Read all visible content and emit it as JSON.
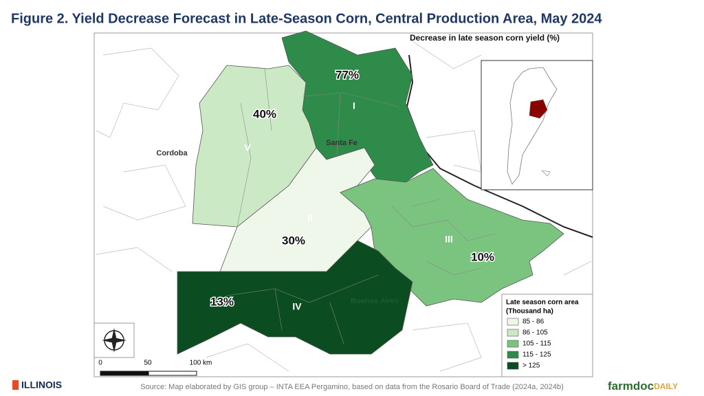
{
  "header": {
    "title": "Figure 2. Yield Decrease Forecast in Late-Season Corn, Central Production Area, May 2024"
  },
  "map": {
    "title": "Decrease in late season corn yield (%)",
    "regions": [
      {
        "id": "I",
        "percent": "77%"
      },
      {
        "id": "V",
        "percent": "40%"
      },
      {
        "id": "II",
        "percent": "30%"
      },
      {
        "id": "III",
        "percent": "10%"
      },
      {
        "id": "IV",
        "percent": "13%"
      }
    ],
    "places": [
      "Santa Fe",
      "Cordoba",
      "Buenos Aires"
    ]
  },
  "legend": {
    "title": [
      "Late season corn area",
      "(Thousand ha)"
    ],
    "items": [
      {
        "label": "85 - 86",
        "color": "#eef7ea"
      },
      {
        "label": "86 - 105",
        "color": "#cbe9c5"
      },
      {
        "label": "105 - 115",
        "color": "#7bc47f"
      },
      {
        "label": "115 - 125",
        "color": "#2e8b4a"
      },
      {
        "label": "> 125",
        "color": "#0b4d21"
      }
    ]
  },
  "scale_bar": [
    "0",
    "50",
    "100 km"
  ],
  "footer": {
    "source": "Source: Map elaborated by GIS group – INTA EEA Pergamino, based on data from the Rosario Board of Trade (2024a, 2024b)",
    "logo_left": "ILLINOIS",
    "logo_right": [
      "farmdoc",
      "DAILY"
    ]
  }
}
